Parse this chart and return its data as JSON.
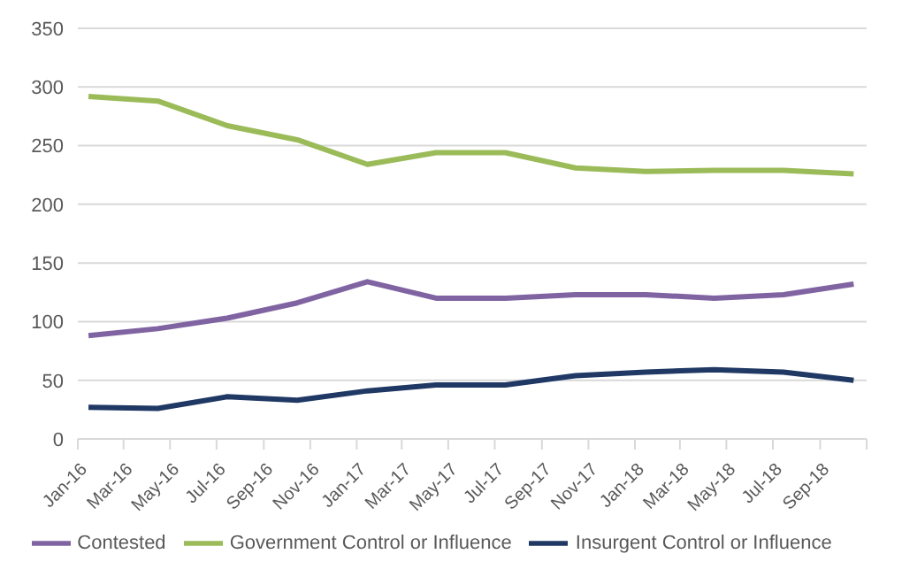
{
  "chart_data": {
    "type": "line",
    "x": [
      "2016-01-15",
      "2016-04-15",
      "2016-07-15",
      "2016-10-15",
      "2017-01-15",
      "2017-04-15",
      "2017-07-15",
      "2017-10-15",
      "2018-01-15",
      "2018-04-15",
      "2018-07-15",
      "2018-10-15"
    ],
    "series": [
      {
        "name": "Government Control or Influence",
        "color": "#9bbb59",
        "values": [
          292,
          288,
          267,
          255,
          234,
          244,
          244,
          231,
          228,
          229,
          229,
          226
        ]
      },
      {
        "name": "Contested",
        "color": "#8064a2",
        "values": [
          88,
          94,
          103,
          116,
          134,
          120,
          120,
          123,
          123,
          120,
          123,
          132
        ]
      },
      {
        "name": "Insurgent Control or Influence",
        "color": "#1f3864",
        "values": [
          27,
          26,
          36,
          33,
          41,
          46,
          46,
          54,
          57,
          59,
          57,
          50
        ]
      }
    ],
    "xlim": [
      "2016-01-01",
      "2018-11-01"
    ],
    "xticks": [
      {
        "value": "2016-01-01",
        "label": "Jan-16"
      },
      {
        "value": "2016-03-01",
        "label": "Mar-16"
      },
      {
        "value": "2016-05-01",
        "label": "May-16"
      },
      {
        "value": "2016-07-01",
        "label": "Jul-16"
      },
      {
        "value": "2016-09-01",
        "label": "Sep-16"
      },
      {
        "value": "2016-11-01",
        "label": "Nov-16"
      },
      {
        "value": "2017-01-01",
        "label": "Jan-17"
      },
      {
        "value": "2017-03-01",
        "label": "Mar-17"
      },
      {
        "value": "2017-05-01",
        "label": "May-17"
      },
      {
        "value": "2017-07-01",
        "label": "Jul-17"
      },
      {
        "value": "2017-09-01",
        "label": "Sep-17"
      },
      {
        "value": "2017-11-01",
        "label": "Nov-17"
      },
      {
        "value": "2018-01-01",
        "label": "Jan-18"
      },
      {
        "value": "2018-03-01",
        "label": "Mar-18"
      },
      {
        "value": "2018-05-01",
        "label": "May-18"
      },
      {
        "value": "2018-07-01",
        "label": "Jul-18"
      },
      {
        "value": "2018-09-01",
        "label": "Sep-18"
      },
      {
        "value": "2018-11-01",
        "label": null
      }
    ],
    "ylim": [
      0,
      350
    ],
    "yticks": [
      0,
      50,
      100,
      150,
      200,
      250,
      300,
      350
    ],
    "grid": "y",
    "legend": "bottom",
    "marker": "none",
    "line_style": "solid"
  }
}
